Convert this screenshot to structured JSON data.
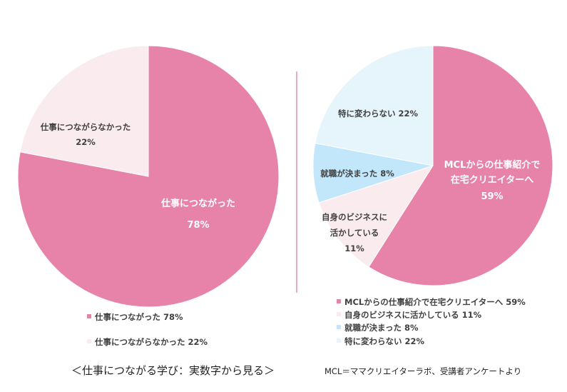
{
  "colors": {
    "pink": "#E783A9",
    "lightpink": "#FAEBEE",
    "lightblue": "#C2E6FA",
    "paleblue": "#E6F4FC",
    "divider": "#D77A9B"
  },
  "chart_data": [
    {
      "type": "pie",
      "title": "",
      "slices": [
        {
          "label": "仕事につながった",
          "value": 78,
          "pct_label": "78%",
          "legend": "仕事につながった 78%",
          "color": "#E783A9"
        },
        {
          "label": "仕事につながらなかった",
          "value": 22,
          "pct_label": "22%",
          "legend": "仕事につながらなかった 22%",
          "color": "#FAEBEE"
        }
      ]
    },
    {
      "type": "pie",
      "title": "",
      "slices": [
        {
          "label_lines": [
            "MCLからの仕事紹介で",
            "在宅クリエイターへ"
          ],
          "value": 59,
          "pct_label": "59%",
          "legend": "MCLからの仕事紹介で在宅クリエイターへ 59%",
          "color": "#E783A9"
        },
        {
          "label_lines": [
            "自身のビジネスに",
            "活かしている"
          ],
          "value": 11,
          "pct_label": "11%",
          "legend": "自身のビジネスに活かしている 11%",
          "color": "#FAEBEE"
        },
        {
          "label_lines": [
            "就職が決まった 8%"
          ],
          "value": 8,
          "pct_label": "",
          "legend": "就職が決まった 8%",
          "color": "#C2E6FA"
        },
        {
          "label_lines": [
            "特に変わらない 22%"
          ],
          "value": 22,
          "pct_label": "",
          "legend": "特に変わらない 22%",
          "color": "#E6F4FC"
        }
      ]
    }
  ],
  "footer": {
    "caption": "＜仕事につながる学び：実数字から見る＞",
    "source": "MCL＝ママクリエイターラボ、受講者アンケートより"
  }
}
